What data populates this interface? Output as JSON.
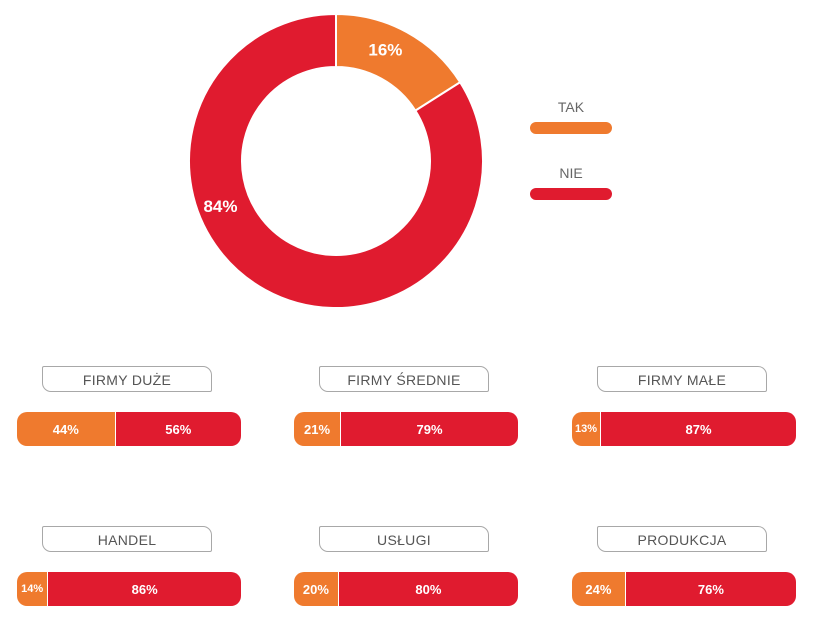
{
  "colors": {
    "tak": "#ef7a2e",
    "nie": "#e01b2f"
  },
  "chart_data": [
    {
      "type": "pie",
      "categories": [
        "TAK",
        "NIE"
      ],
      "values": [
        16,
        84
      ],
      "labels": [
        "16%",
        "84%"
      ],
      "legend_position": "right"
    },
    {
      "type": "bar",
      "stacked": true,
      "orientation": "horizontal",
      "categories": [
        "FIRMY DUŻE",
        "FIRMY ŚREDNIE",
        "FIRMY MAŁE",
        "HANDEL",
        "USŁUGI",
        "PRODUKCJA"
      ],
      "series": [
        {
          "name": "TAK",
          "values": [
            44,
            21,
            13,
            14,
            20,
            24
          ]
        },
        {
          "name": "NIE",
          "values": [
            56,
            79,
            87,
            86,
            80,
            76
          ]
        }
      ],
      "xlim": [
        0,
        100
      ]
    }
  ],
  "legend": {
    "items": [
      {
        "label": "TAK"
      },
      {
        "label": "NIE"
      }
    ]
  },
  "panels": [
    {
      "title": "FIRMY DUŻE",
      "tak_label": "44%",
      "nie_label": "56%"
    },
    {
      "title": "FIRMY ŚREDNIE",
      "tak_label": "21%",
      "nie_label": "79%"
    },
    {
      "title": "FIRMY MAŁE",
      "tak_label": "13%",
      "nie_label": "87%"
    },
    {
      "title": "HANDEL",
      "tak_label": "14%",
      "nie_label": "86%"
    },
    {
      "title": "USŁUGI",
      "tak_label": "20%",
      "nie_label": "80%"
    },
    {
      "title": "PRODUKCJA",
      "tak_label": "24%",
      "nie_label": "76%"
    }
  ]
}
